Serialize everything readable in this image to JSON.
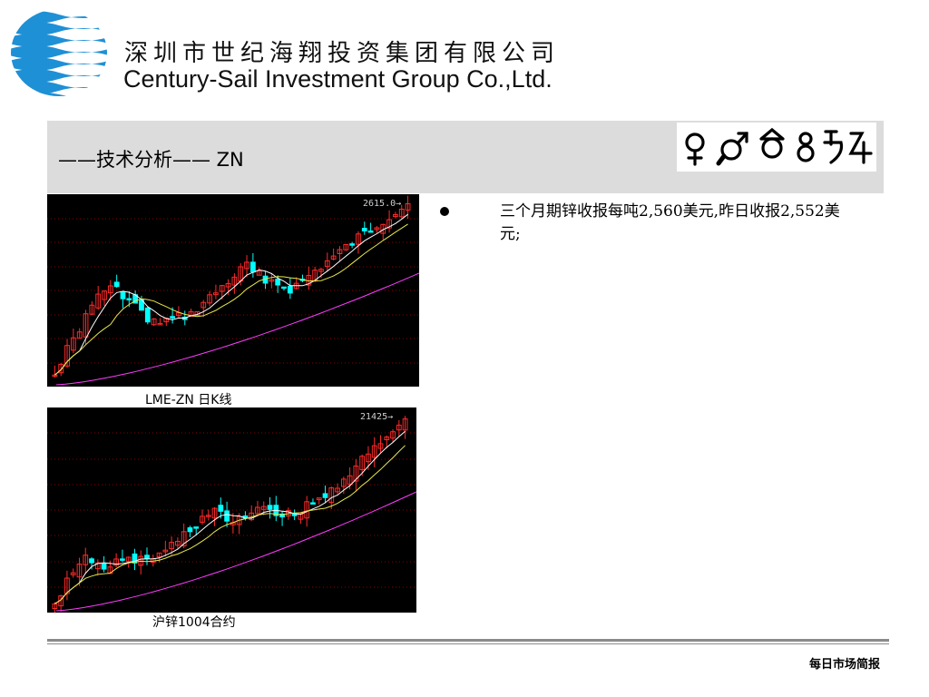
{
  "header": {
    "company_cn": "深圳市世纪海翔投资集团有限公司",
    "company_en": "Century-Sail Investment Group Co.,Ltd."
  },
  "banner": {
    "title": "——技术分析—— ZN",
    "symbols": "♀♂☊♁♄♃",
    "symbol_icons": [
      "venus-icon",
      "mars-icon",
      "node-icon",
      "earth-icon",
      "saturn-icon",
      "jupiter-icon"
    ]
  },
  "charts": [
    {
      "caption": "LME-ZN 日K线",
      "price_label": "2615.0→"
    },
    {
      "caption": "沪锌1004合约",
      "price_label": "21425→"
    }
  ],
  "bullet": {
    "text": "三个月期锌收报每吨2,560美元,昨日收报2,552美元;"
  },
  "footer": {
    "text": "每日市场简报"
  },
  "colors": {
    "banner_bg": "#dcdcdc",
    "chart_bg": "#000000",
    "grid": "#8b0000",
    "up_candle": "#ff2a2a",
    "down_candle": "#00ffff",
    "ma_white": "#ffffff",
    "ma_yellow": "#e8e84a",
    "ma_magenta": "#ff3cff"
  }
}
